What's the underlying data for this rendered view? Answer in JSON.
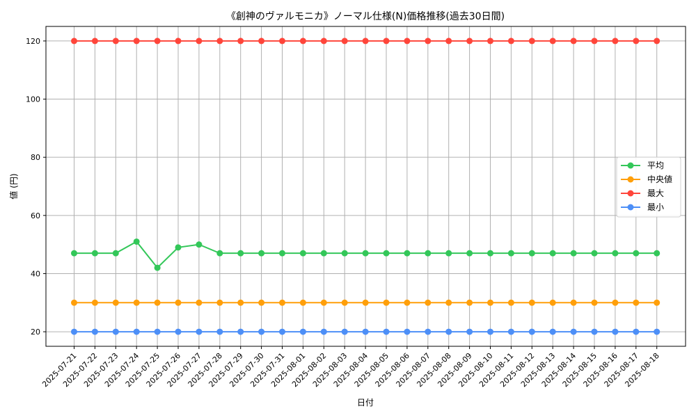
{
  "chart_data": {
    "type": "line",
    "title": "《創神のヴァルモニカ》ノーマル仕様(N)価格推移(過去30日間)",
    "xlabel": "日付",
    "ylabel": "値 (円)",
    "ylim": [
      15,
      125
    ],
    "yticks": [
      20,
      40,
      60,
      80,
      100,
      120
    ],
    "grid": true,
    "legend_position": "right",
    "categories": [
      "2025-07-21",
      "2025-07-22",
      "2025-07-23",
      "2025-07-24",
      "2025-07-25",
      "2025-07-26",
      "2025-07-27",
      "2025-07-28",
      "2025-07-29",
      "2025-07-30",
      "2025-07-31",
      "2025-08-01",
      "2025-08-02",
      "2025-08-03",
      "2025-08-04",
      "2025-08-05",
      "2025-08-06",
      "2025-08-07",
      "2025-08-08",
      "2025-08-09",
      "2025-08-10",
      "2025-08-11",
      "2025-08-12",
      "2025-08-13",
      "2025-08-14",
      "2025-08-15",
      "2025-08-16",
      "2025-08-17",
      "2025-08-18"
    ],
    "series": [
      {
        "name": "平均",
        "color": "#33c759",
        "values": [
          47,
          47,
          47,
          51,
          42,
          49,
          50,
          47,
          47,
          47,
          47,
          47,
          47,
          47,
          47,
          47,
          47,
          47,
          47,
          47,
          47,
          47,
          47,
          47,
          47,
          47,
          47,
          47,
          47
        ]
      },
      {
        "name": "中央値",
        "color": "#ff9f0a",
        "values": [
          30,
          30,
          30,
          30,
          30,
          30,
          30,
          30,
          30,
          30,
          30,
          30,
          30,
          30,
          30,
          30,
          30,
          30,
          30,
          30,
          30,
          30,
          30,
          30,
          30,
          30,
          30,
          30,
          30
        ]
      },
      {
        "name": "最大",
        "color": "#ff453a",
        "values": [
          120,
          120,
          120,
          120,
          120,
          120,
          120,
          120,
          120,
          120,
          120,
          120,
          120,
          120,
          120,
          120,
          120,
          120,
          120,
          120,
          120,
          120,
          120,
          120,
          120,
          120,
          120,
          120,
          120
        ]
      },
      {
        "name": "最小",
        "color": "#4d8ff7",
        "values": [
          20,
          20,
          20,
          20,
          20,
          20,
          20,
          20,
          20,
          20,
          20,
          20,
          20,
          20,
          20,
          20,
          20,
          20,
          20,
          20,
          20,
          20,
          20,
          20,
          20,
          20,
          20,
          20,
          20
        ]
      }
    ]
  }
}
